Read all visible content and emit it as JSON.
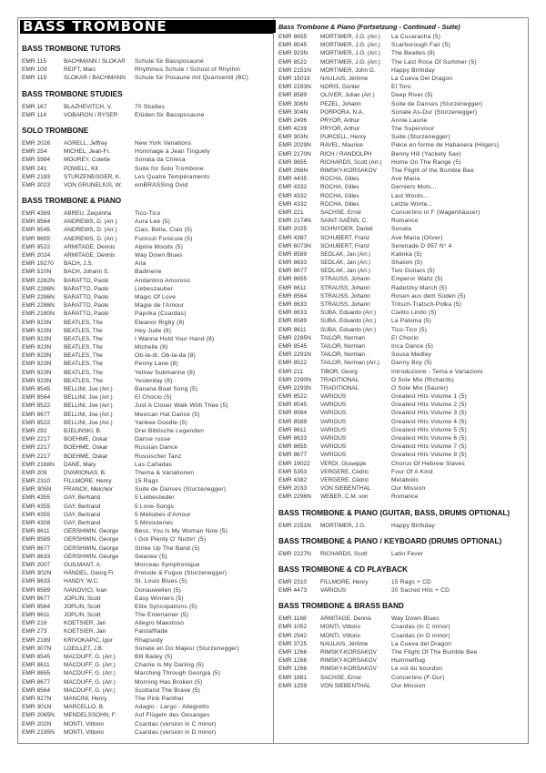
{
  "page_title": "BASS TROMBONE",
  "left_sections": [
    {
      "heading": "BASS TROMBONE TUTORS",
      "rows": [
        [
          "EMR 115",
          "BACHMANN / SLOKAR",
          "Schule für Bassposaune"
        ],
        [
          "EMR 109",
          "REIFT, Marc",
          "Rhythmus Schule / School of Rhythm"
        ],
        [
          "EMR 119",
          "SLOKAR / BACHMANN",
          "Schule für Posaune mit Quartventil (BC)"
        ]
      ]
    },
    {
      "heading": "BASS TROMBONE STUDIES",
      "rows": [
        [
          "EMR 167",
          "BLAZHEVITCH, V.",
          "70 Studies"
        ],
        [
          "EMR 114",
          "VOBARON / RYSER",
          "Etüden für Bassposaune"
        ]
      ]
    },
    {
      "heading": "SOLO TROMBONE",
      "rows": [
        [
          "EMR 2026",
          "AGRELL, Jeffrey",
          "New York Variations"
        ],
        [
          "EMR 254",
          "MICHEL, Jean-Fr.",
          "Hommage à Jean Tinguely"
        ],
        [
          "EMR 5984",
          "MOUREY, Colette",
          "Sonata da Chiesa"
        ],
        [
          "EMR 241",
          "POWELL, Kit",
          "Suite for Solo Trombone"
        ],
        [
          "EMR 2183",
          "STURZENEGGER, K.",
          "Les Quatre Tempéraments"
        ],
        [
          "EMR 2023",
          "VON GRUNELIUS, W.",
          "emBRASSing Ovid"
        ]
      ]
    },
    {
      "heading": "BASS TROMBONE & PIANO",
      "rows": [
        [
          "EMR 4369",
          "ABREU, Zequinha",
          "Tico-Tico"
        ],
        [
          "EMR 8564",
          "ANDREWS, D. (Arr.)",
          "Aura Lee (5)"
        ],
        [
          "EMR 8545",
          "ANDREWS, D. (Arr.)",
          "Ciao, Bella, Ciao (5)"
        ],
        [
          "EMR 8655",
          "ANDREWS, D. (Arr.)",
          "Funiculi Funicula (5)"
        ],
        [
          "EMR 8522",
          "ARMITAGE, Dennis",
          "Alpine Moods (5)"
        ],
        [
          "EMR 2024",
          "ARMITAGE, Dennis",
          "Way Down Blues"
        ],
        [
          "EMR 19270",
          "BACH, J.S.",
          "Aria"
        ],
        [
          "EMR 510N",
          "BACH, Johann S.",
          "Badinerie"
        ],
        [
          "EMR 2282N",
          "BARATTO, Paolo",
          "Andantino Amoroso"
        ],
        [
          "EMR 2286N",
          "BARATTO, Paolo",
          "Liebeszauber"
        ],
        [
          "EMR 2286N",
          "BARATTO, Paolo",
          "Magic Of Love"
        ],
        [
          "EMR 2286N",
          "BARATTO, Paolo",
          "Magie de l'Amour"
        ],
        [
          "EMR 2180N",
          "BARATTO, Paolo",
          "Paprika (Csardas)"
        ],
        [
          "EMR 923N",
          "BEATLES, The",
          "Eleanor Rigby (8)"
        ],
        [
          "EMR 923N",
          "BEATLES, The",
          "Hey Jude (8)"
        ],
        [
          "EMR 923N",
          "BEATLES, The",
          "I Wanna Hold Your Hand (8)"
        ],
        [
          "EMR 923N",
          "BEATLES, The",
          "Michelle (8)"
        ],
        [
          "EMR 923N",
          "BEATLES, The",
          "Ob-la-di, Ob-la-da (8)"
        ],
        [
          "EMR 923N",
          "BEATLES, The",
          "Penny Lane (8)"
        ],
        [
          "EMR 923N",
          "BEATLES, The",
          "Yellow Submarine (8)"
        ],
        [
          "EMR 923N",
          "BEATLES, The",
          "Yesterday (8)"
        ],
        [
          "EMR 8545",
          "BELLINI, Joe (Arr.)",
          "Banana Boat Song (5)"
        ],
        [
          "EMR 8564",
          "BELLINI, Joe (Arr.)",
          "El Choclo (5)"
        ],
        [
          "EMR 8522",
          "BELLINI, Joe (Arr.)",
          "Just A Closer Walk With Thee (5)"
        ],
        [
          "EMR 8677",
          "BELLINI, Joe (Arr.)",
          "Mexican Hat Dance (5)"
        ],
        [
          "EMR 8522",
          "BELLINI, Joe (Arr.)",
          "Yankee Doodle (5)"
        ],
        [
          "EMR 292",
          "BJELINSKI, B.",
          "Drei Biblische Legenden"
        ],
        [
          "EMR 2217",
          "BOEHME, Oskar",
          "Danse russe"
        ],
        [
          "EMR 2217",
          "BOEHME, Oskar",
          "Russian Dance"
        ],
        [
          "EMR 2217",
          "BOEHME, Oskar",
          "Russischer Tanz"
        ],
        [
          "EMR 2168N",
          "DANE, Mary",
          "Las Cañadas"
        ],
        [
          "EMR 209",
          "DVARIONAS, B.",
          "Thema & Variationen"
        ],
        [
          "EMR 2310",
          "FILLMORE, Henry",
          "15 Rags"
        ],
        [
          "EMR 305N",
          "FRANCK, Melchior",
          "Suite de Danses (Sturzenegger)"
        ],
        [
          "EMR 4355",
          "GAY, Bertrand",
          "5 Liebeslieder"
        ],
        [
          "EMR 4355",
          "GAY, Bertrand",
          "5 Love-Songs"
        ],
        [
          "EMR 4355",
          "GAY, Bertrand",
          "5 Mélodies d'Amour"
        ],
        [
          "EMR 4308",
          "GAY, Bertrand",
          "5 Minouteries"
        ],
        [
          "EMR 8611",
          "GERSHWIN, George",
          "Bess, You Is My Woman Now (5)"
        ],
        [
          "EMR 8589",
          "GERSHWIN, George",
          "I Got Plenty O' Nuttin' (5)"
        ],
        [
          "EMR 8677",
          "GERSHWIN, George",
          "Strike Up The Band (5)"
        ],
        [
          "EMR 8633",
          "GERSHWIN, George",
          "Swanee (5)"
        ],
        [
          "EMR 2007",
          "GUILMANT, A.",
          "Morceau Symphonique"
        ],
        [
          "EMR 302N",
          "HÄNDEL, Georg Fr.",
          "Prelude & Fugue (Sturzenegger)"
        ],
        [
          "EMR 8633",
          "HANDY, W.C.",
          "St. Louis Blues (5)"
        ],
        [
          "EMR 8589",
          "IVANOVICI, Ivan",
          "Donauwellen (5)"
        ],
        [
          "EMR 8677",
          "JOPLIN, Scott",
          "Easy Winners (5)"
        ],
        [
          "EMR 8564",
          "JOPLIN, Scott",
          "Elite Syncopations (5)"
        ],
        [
          "EMR 8611",
          "JOPLIN, Scott",
          "The Entertainer (5)"
        ],
        [
          "EMR 216",
          "KOETSIER, Jan",
          "Allegro Maestoso"
        ],
        [
          "EMR 273",
          "KOETSIER, Jan",
          "Falstaffiade"
        ],
        [
          "EMR 2189",
          "KRIVOKAPIC, Igor",
          "Rhapsody"
        ],
        [
          "EMR 307N",
          "LOEILLET, J.B.",
          "Sonate en Do Majeur (Sturzenegger)"
        ],
        [
          "EMR 8545",
          "MACDUFF, G. (Arr.)",
          "Bill Bailey (5)"
        ],
        [
          "EMR 8611",
          "MACDUFF, G. (Arr.)",
          "Charlie Is My Darling (5)"
        ],
        [
          "EMR 8655",
          "MACDUFF, G. (Arr.)",
          "Marching Through Georgia (5)"
        ],
        [
          "EMR 8677",
          "MACDUFF, G. (Arr.)",
          "Morning Has Broken (5)"
        ],
        [
          "EMR 8564",
          "MACDUFF, G. (Arr.)",
          "Scotland The Brave (5)"
        ],
        [
          "EMR 927N",
          "MANCINI, Henry",
          "The Pink Panther"
        ],
        [
          "EMR 301N",
          "MARCELLO, B.",
          "Adagio - Largo - Allegretto"
        ],
        [
          "EMR 2065N",
          "MENDELSSOHN, F.",
          "Auf Flügeln des Gesanges"
        ],
        [
          "EMR 202N",
          "MONTI, Vittorio",
          "Csardas (version in C minor)"
        ],
        [
          "EMR 2195N",
          "MONTI, Vittorio",
          "Csardas (version in D minor)"
        ]
      ]
    }
  ],
  "right_sections": [
    {
      "heading": "Bass Trombone & Piano (Fortsetzung - Continued - Suite)",
      "continued": true,
      "rows": [
        [
          "EMR 8655",
          "MORTIMER, J.G. (Arr.)",
          "La Cucaracha (5)"
        ],
        [
          "EMR 8545",
          "MORTIMER, J.G. (Arr.)",
          "Scarborough Fair (5)"
        ],
        [
          "EMR 923N",
          "MORTIMER, J.G. (Arr.)",
          "The Beatles (8)"
        ],
        [
          "EMR 8522",
          "MORTIMER, J.G. (Arr.)",
          "The Last Rose Of Summer (5)"
        ],
        [
          "EMR 2151N",
          "MORTIMER, John G.",
          "Happy Birthday"
        ],
        [
          "EMR 15016",
          "NAULAIS, Jérôme",
          "La Cueva Del Dragon"
        ],
        [
          "EMR 2283N",
          "NORIS, Günter",
          "El Toro"
        ],
        [
          "EMR 8589",
          "OLIVER, Julian (Arr.)",
          "Deep River (5)"
        ],
        [
          "EMR 306N",
          "PEZEL, Johann",
          "Suite de Danses (Sturzenegger)"
        ],
        [
          "EMR 304N",
          "PORPORA, N.A.",
          "Sonate As-Dur (Sturzenegger)"
        ],
        [
          "EMR 2496",
          "PRYOR, Arthur",
          "Annie Laurie"
        ],
        [
          "EMR 4239",
          "PRYOR, Arthur",
          "The Supervisor"
        ],
        [
          "EMR 303N",
          "PURCELL, Henry",
          "Suite (Sturzenegger)"
        ],
        [
          "EMR 2029N",
          "RAVEL, Maurice",
          "Pièce en forme de Habanera (Hilgers)"
        ],
        [
          "EMR 2170N",
          "RICH / RANDOLPH",
          "Benny Hill (Yackety Sax)"
        ],
        [
          "EMR 8655",
          "RICHARDS, Scott (Arr.)",
          "Home On The Range (5)"
        ],
        [
          "EMR 266N",
          "RIMSKY-KORSAKOV",
          "The Flight of the Bumble Bee"
        ],
        [
          "EMR 4435",
          "ROCHA, Gilles",
          "Ave Maria"
        ],
        [
          "EMR 4332",
          "ROCHA, Gilles",
          "Derniers Mots..."
        ],
        [
          "EMR 4332",
          "ROCHA, Gilles",
          "Last Words..."
        ],
        [
          "EMR 4332",
          "ROCHA, Gilles",
          "Letzte Worte..."
        ],
        [
          "EMR 221",
          "SACHSE, Ernst",
          "Concertino in F (Wagenhäuser)"
        ],
        [
          "EMR 2174N",
          "SAINT-SAËNS, C.",
          "Romance"
        ],
        [
          "EMR 2025",
          "SCHNYDER, Daniel",
          "Sonata"
        ],
        [
          "EMR 4387",
          "SCHUBERT, Franz",
          "Ave Maria (Oliver)"
        ],
        [
          "EMR 6073N",
          "SCHUBERT, Franz",
          "Serenade D 957 N° 4"
        ],
        [
          "EMR 8589",
          "SEDLAK, Jan (Arr.)",
          "Kalinka (5)"
        ],
        [
          "EMR 8633",
          "SEDLAK, Jan (Arr.)",
          "Shalom (5)"
        ],
        [
          "EMR 8677",
          "SEDLAK, Jan (Arr.)",
          "Two Guitars (5)"
        ],
        [
          "EMR 8655",
          "STRAUSS, Johann",
          "Emperor Waltz (5)"
        ],
        [
          "EMR 8611",
          "STRAUSS, Johann",
          "Radetzky March (5)"
        ],
        [
          "EMR 8564",
          "STRAUSS, Johann",
          "Rosen aus dem Süden (5)"
        ],
        [
          "EMR 8633",
          "STRAUSS, Johann",
          "Tritsch-Tratsch-Polka (5)"
        ],
        [
          "EMR 8633",
          "SUBA, Eduardo (Arr.)",
          "Cielito Lindo (5)"
        ],
        [
          "EMR 8589",
          "SUBA, Eduardo (Arr.)",
          "La Paloma (5)"
        ],
        [
          "EMR 8611",
          "SUBA, Eduardo (Arr.)",
          "Tico-Tico (5)"
        ],
        [
          "EMR 2285N",
          "TAILOR, Norman",
          "El Choclo"
        ],
        [
          "EMR 8545",
          "TAILOR, Norman",
          "Inca Dance (5)"
        ],
        [
          "EMR 2291N",
          "TAILOR, Norman",
          "Sousa Medley"
        ],
        [
          "EMR 8522",
          "TAILOR, Norman (Arr.)",
          "Danny Boy (5)"
        ],
        [
          "EMR 211",
          "TIBOR, Georg",
          "Introduzione - Tema e Variazioni"
        ],
        [
          "EMR 2290N",
          "TRADITIONAL",
          "O Sole Mio (Richards)"
        ],
        [
          "EMR 2293N",
          "TRADITIONAL",
          "O Sole Mio (Saurer)"
        ],
        [
          "EMR 8522",
          "VARIOUS",
          "Greatest Hits Volume 1 (5)"
        ],
        [
          "EMR 8545",
          "VARIOUS",
          "Greatest Hits Volume 2 (5)"
        ],
        [
          "EMR 8564",
          "VARIOUS",
          "Greatest Hits Volume 3 (5)"
        ],
        [
          "EMR 8589",
          "VARIOUS",
          "Greatest Hits Volume 4 (5)"
        ],
        [
          "EMR 8611",
          "VARIOUS",
          "Greatest Hits Volume 5 (5)"
        ],
        [
          "EMR 8633",
          "VARIOUS",
          "Greatest Hits Volume 6 (5)"
        ],
        [
          "EMR 8655",
          "VARIOUS",
          "Greatest Hits Volume 7 (5)"
        ],
        [
          "EMR 8677",
          "VARIOUS",
          "Greatest Hits Volume 8 (5)"
        ],
        [
          "EMR 19022",
          "VERDI, Giuseppe",
          "Chorus Of Hebrew Slaves"
        ],
        [
          "EMR 5353",
          "VERGERE, Cédric",
          "Four Of A Kind"
        ],
        [
          "EMR 4382",
          "VERGERE, Cédric",
          "Metabolic"
        ],
        [
          "EMR 2033",
          "VON SIEBENTHAL",
          "Our Mission"
        ],
        [
          "EMR 2296N",
          "WEBER, C.M. von",
          "Romance"
        ]
      ]
    },
    {
      "heading": "BASS TROMBONE & PIANO (GUITAR, BASS, DRUMS OPTIONAL)",
      "rows": [
        [
          "EMR 2151N",
          "MORTIMER, J.G.",
          "Happy Birthday"
        ]
      ]
    },
    {
      "heading": "BASS TROMBONE & PIANO / KEYBOARD (DRUMS OPTIONAL)",
      "rows": [
        [
          "EMR 2227N",
          "RICHARDS, Scott",
          "Latin Fever"
        ]
      ]
    },
    {
      "heading": "BASS TROMBONE & CD PLAYBACK",
      "rows": [
        [
          "EMR 2310",
          "FILLMORE, Henry",
          "15 Rags + CD"
        ],
        [
          "EMR 4473",
          "VARIOUS",
          "20 Sacred Hits + CD"
        ]
      ]
    },
    {
      "heading": "BASS TROMBONE & BRASS BAND",
      "rows": [
        [
          "EMR 1168",
          "ARMITAGE, Dennis",
          "Way Down Blues"
        ],
        [
          "EMR 1052",
          "MONTI, Vittorio",
          "Csardas (in C minor)"
        ],
        [
          "EMR 2942",
          "MONTI, Vittorio",
          "Csardas (in D minor)"
        ],
        [
          "EMR 3725",
          "NAULAIS, Jérôme",
          "La Cueva del Dragon"
        ],
        [
          "EMR 1266",
          "RIMSKY-KORSAKOV",
          "The Flight Of The Bumble Bee"
        ],
        [
          "EMR 1266",
          "RIMSKY-KORSAKOV",
          "Hummelflug"
        ],
        [
          "EMR 1266",
          "RIMSKY-KORSAKOV",
          "Le vol du bourdon"
        ],
        [
          "EMR 1881",
          "SACHSE, Ernst",
          "Concertino (F-Dur)"
        ],
        [
          "EMR 1259",
          "VON SIEBENTHAL",
          "Our Mission"
        ]
      ]
    }
  ]
}
